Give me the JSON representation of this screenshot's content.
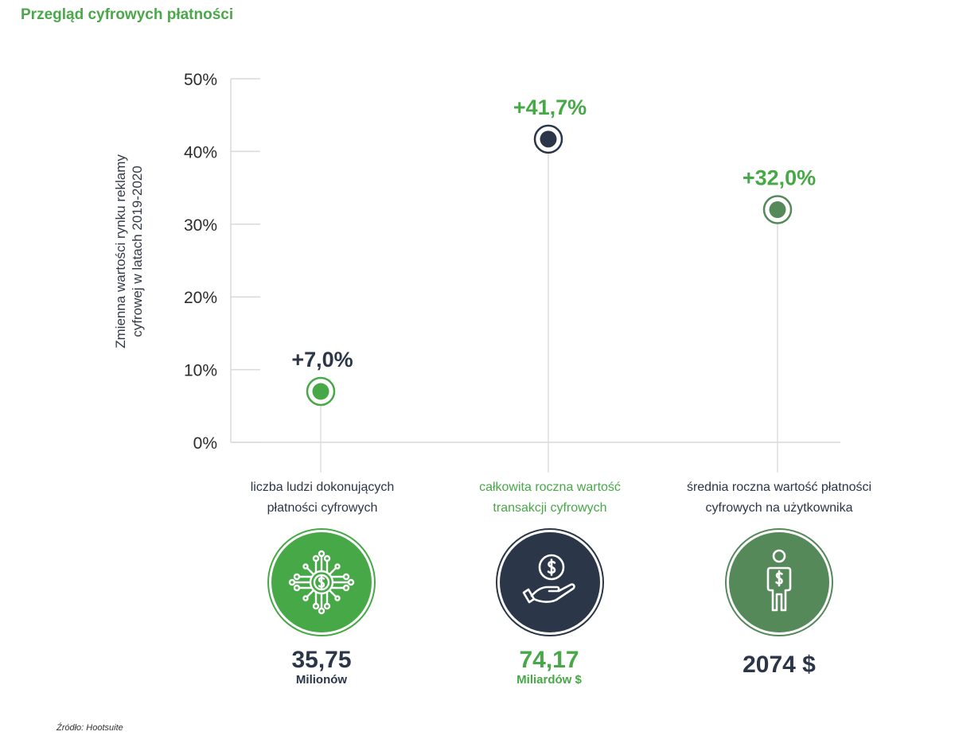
{
  "page": {
    "title": "Przegląd cyfrowych płatności",
    "source": "Źródło: Hootsuite"
  },
  "colors": {
    "green_bright": "#47a847",
    "green_dark": "#55895a",
    "navy": "#2b3648",
    "grid": "#d9d9d9"
  },
  "chart_data": {
    "type": "scatter",
    "title": "",
    "ylabel": [
      "Zmienna  wartości rynku reklamy",
      "cyfrowej w latach 2019-2020"
    ],
    "xlabel": "",
    "ylim": [
      0,
      50
    ],
    "yticks": [
      0,
      10,
      20,
      30,
      40,
      50
    ],
    "ytick_labels": [
      "0%",
      "10%",
      "20%",
      "30%",
      "40%",
      "50%"
    ],
    "grid": false,
    "categories": [
      "liczba ludzi dokonujących płatności cyfrowych",
      "całkowita roczna wartość transakcji cyfrowych",
      "średnia roczna wartość płatności cyfrowych na użytkownika"
    ],
    "values": [
      7.0,
      41.7,
      32.0
    ],
    "data_labels": [
      "+7,0%",
      "+41,7%",
      "+32,0%"
    ]
  },
  "categories": [
    {
      "label_lines": [
        "liczba ludzi dokonujących",
        "płatności cyfrowych"
      ],
      "icon": "digital-dollar-network-icon",
      "stat_value": "35,75",
      "stat_unit": "Milionów",
      "point_color": "#47a847",
      "label_color": "#2b3648",
      "data_label_color": "#2b3648",
      "circle_color": "#47a847",
      "stat_color": "#2b3648"
    },
    {
      "label_lines": [
        "całkowita roczna wartość",
        "transakcji cyfrowych"
      ],
      "icon": "hand-holding-coin-icon",
      "stat_value": "74,17",
      "stat_unit": "Miliardów $",
      "point_color": "#2b3648",
      "label_color": "#47a847",
      "data_label_color": "#47a847",
      "circle_color": "#2b3648",
      "stat_color": "#47a847"
    },
    {
      "label_lines": [
        "średnia roczna wartość płatności",
        "cyfrowych na użytkownika"
      ],
      "icon": "person-dollar-icon",
      "stat_value": "2074 $",
      "stat_unit": "",
      "point_color": "#55895a",
      "label_color": "#2b3648",
      "data_label_color": "#47a847",
      "circle_color": "#55895a",
      "stat_color": "#2b3648"
    }
  ]
}
